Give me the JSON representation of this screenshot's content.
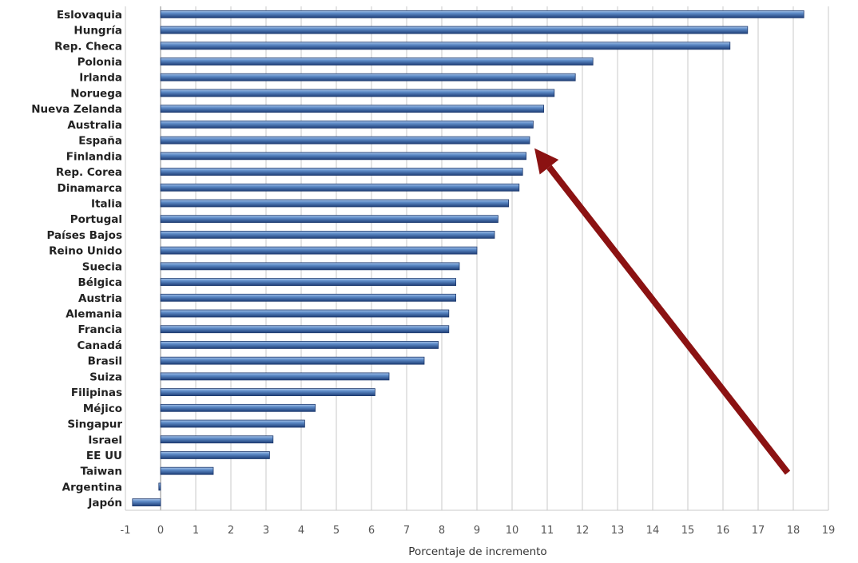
{
  "chart_data": {
    "type": "bar",
    "orientation": "horizontal",
    "title": "",
    "xlabel": "Porcentaje de incremento",
    "ylabel": "",
    "xlim": [
      -1,
      19
    ],
    "x_ticks": [
      -1,
      0,
      1,
      2,
      3,
      4,
      5,
      6,
      7,
      8,
      9,
      10,
      11,
      12,
      13,
      14,
      15,
      16,
      17,
      18,
      19
    ],
    "grid": "vertical",
    "categories": [
      "Eslovaquia",
      "Hungría",
      "Rep. Checa",
      "Polonia",
      "Irlanda",
      "Noruega",
      "Nueva Zelanda",
      "Australia",
      "España",
      "Finlandia",
      "Rep. Corea",
      "Dinamarca",
      "Italia",
      "Portugal",
      "Países Bajos",
      "Reino Unido",
      "Suecia",
      "Bélgica",
      "Austria",
      "Alemania",
      "Francia",
      "Canadá",
      "Brasil",
      "Suiza",
      "Filipinas",
      "Méjico",
      "Singapur",
      "Israel",
      "EE UU",
      "Taiwan",
      "Argentina",
      "Japón"
    ],
    "values": [
      18.3,
      16.7,
      16.2,
      12.3,
      11.8,
      11.2,
      10.9,
      10.6,
      10.5,
      10.4,
      10.3,
      10.2,
      9.9,
      9.6,
      9.5,
      9.0,
      8.5,
      8.4,
      8.4,
      8.2,
      8.2,
      7.9,
      7.5,
      6.5,
      6.1,
      4.4,
      4.1,
      3.2,
      3.1,
      1.5,
      -0.05,
      -0.8
    ],
    "bar_color": "#4f7fbf",
    "annotation": {
      "type": "arrow",
      "points_to": "España",
      "color": "#8b1212"
    }
  }
}
